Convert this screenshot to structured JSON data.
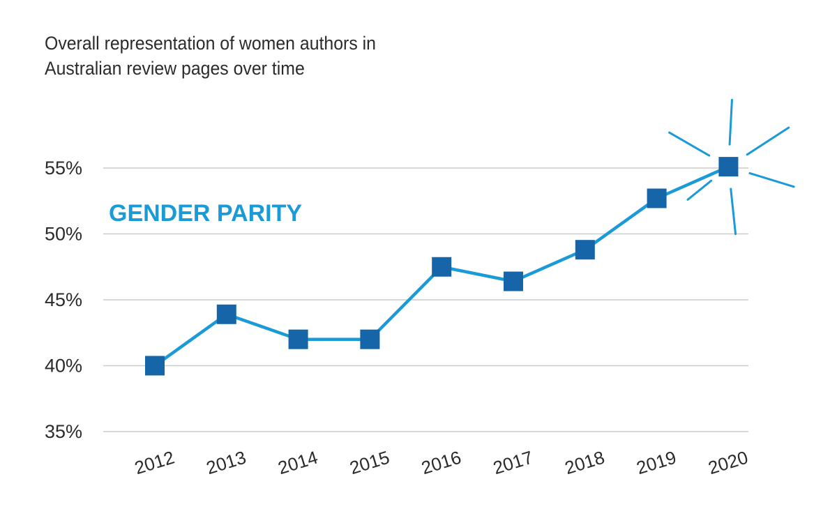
{
  "chart_data": {
    "type": "line",
    "title_lines": [
      "Overall representation of women authors in",
      "Australian review pages over time"
    ],
    "categories": [
      "2012",
      "2013",
      "2014",
      "2015",
      "2016",
      "2017",
      "2018",
      "2019",
      "2020"
    ],
    "series": [
      {
        "name": "Women authors",
        "values": [
          40,
          43.9,
          42,
          42,
          47.5,
          46.4,
          48.8,
          52.7,
          55.1
        ]
      }
    ],
    "y_ticks": [
      35,
      40,
      45,
      50,
      55
    ],
    "y_tick_labels": [
      "35%",
      "40%",
      "45%",
      "50%",
      "55%"
    ],
    "ylim": [
      35,
      55
    ],
    "grid": true,
    "annotation": {
      "text": "GENDER PARITY",
      "highlight_category": "2020"
    },
    "colors": {
      "line": "#1a9ad6",
      "marker": "#1565a8",
      "grid": "#cccccc",
      "text": "#2b2b2b",
      "accent": "#1a9ad6"
    }
  }
}
